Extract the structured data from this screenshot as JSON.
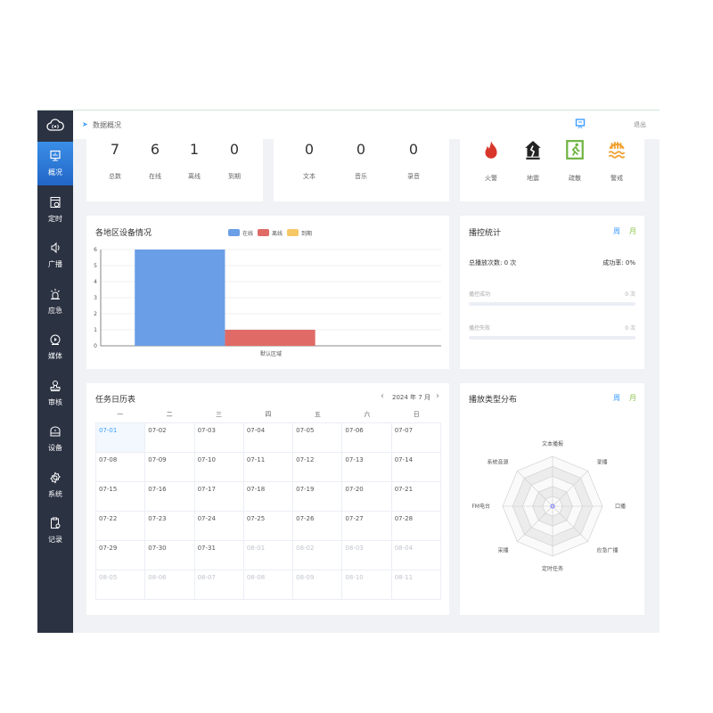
{
  "header": {
    "breadcrumb": "数据概况",
    "logout": "退出"
  },
  "sidebar": {
    "items": [
      {
        "label": "概况",
        "icon": "monitor-chart-icon",
        "active": true
      },
      {
        "label": "定时",
        "icon": "schedule-icon"
      },
      {
        "label": "广播",
        "icon": "speaker-icon"
      },
      {
        "label": "应急",
        "icon": "alarm-light-icon"
      },
      {
        "label": "媒体",
        "icon": "media-disc-icon"
      },
      {
        "label": "审核",
        "icon": "stamp-icon"
      },
      {
        "label": "设备",
        "icon": "device-icon"
      },
      {
        "label": "系统",
        "icon": "gear-icon"
      },
      {
        "label": "记录",
        "icon": "clipboard-icon"
      }
    ]
  },
  "devices": {
    "items": [
      {
        "value": "7",
        "label": "总数"
      },
      {
        "value": "6",
        "label": "在线"
      },
      {
        "value": "1",
        "label": "离线"
      },
      {
        "value": "0",
        "label": "到期"
      }
    ]
  },
  "media": {
    "items": [
      {
        "value": "0",
        "label": "文本"
      },
      {
        "value": "0",
        "label": "音乐"
      },
      {
        "value": "0",
        "label": "录音"
      }
    ]
  },
  "emergency": {
    "items": [
      {
        "label": "火警",
        "icon": "fire-icon",
        "color": "#d9362b"
      },
      {
        "label": "地震",
        "icon": "earthquake-house-icon",
        "color": "#222222"
      },
      {
        "label": "疏散",
        "icon": "evacuation-exit-icon",
        "color": "#6cb33f"
      },
      {
        "label": "警戒",
        "icon": "flood-warning-icon",
        "color": "#f0a030"
      }
    ]
  },
  "region_chart": {
    "title": "各地区设备情况",
    "chart_data": {
      "type": "bar",
      "categories": [
        "默认区域"
      ],
      "series": [
        {
          "name": "在线",
          "values": [
            6
          ],
          "color": "#6a9ee6"
        },
        {
          "name": "离线",
          "values": [
            1
          ],
          "color": "#e06b66"
        },
        {
          "name": "到期",
          "values": [
            0
          ],
          "color": "#f5c865"
        }
      ],
      "ylim": [
        0,
        6
      ],
      "yticks": [
        "0",
        "1",
        "2",
        "3",
        "4",
        "5",
        "6"
      ],
      "grid": true,
      "legend": "top"
    }
  },
  "play_stats": {
    "title": "播控统计",
    "tab_week": "周",
    "tab_month": "月",
    "total": "总播放次数: 0 次",
    "rate": "成功率:  0%",
    "success_label": "播控成功",
    "success_count": "0 次",
    "success_progress": 0,
    "fail_label": "播控失败",
    "fail_count": "0 次",
    "fail_progress": 0
  },
  "calendar": {
    "title": "任务日历表",
    "month": "2024 年 7 月",
    "prev": "‹",
    "next": "›",
    "weekdays": [
      "一",
      "二",
      "三",
      "四",
      "五",
      "六",
      "日"
    ],
    "weeks": [
      [
        "07-01",
        "07-02",
        "07-03",
        "07-04",
        "07-05",
        "07-06",
        "07-07"
      ],
      [
        "07-08",
        "07-09",
        "07-10",
        "07-11",
        "07-12",
        "07-13",
        "07-14"
      ],
      [
        "07-15",
        "07-16",
        "07-17",
        "07-18",
        "07-19",
        "07-20",
        "07-21"
      ],
      [
        "07-22",
        "07-23",
        "07-24",
        "07-25",
        "07-26",
        "07-27",
        "07-28"
      ],
      [
        "07-29",
        "07-30",
        "07-31",
        "08-01",
        "08-02",
        "08-03",
        "08-04"
      ],
      [
        "08-05",
        "08-06",
        "08-07",
        "08-08",
        "08-09",
        "08-10",
        "08-11"
      ]
    ]
  },
  "play_types": {
    "title": "播放类型分布",
    "tab_week": "周",
    "tab_month": "月",
    "chart_data": {
      "type": "radar",
      "indicators": [
        "文本播报",
        "录播",
        "口播",
        "应急广播",
        "定时任务",
        "采播",
        "FM电台",
        "系统音源"
      ],
      "values": [
        0,
        0,
        0,
        0,
        0,
        0,
        0,
        0
      ]
    }
  }
}
